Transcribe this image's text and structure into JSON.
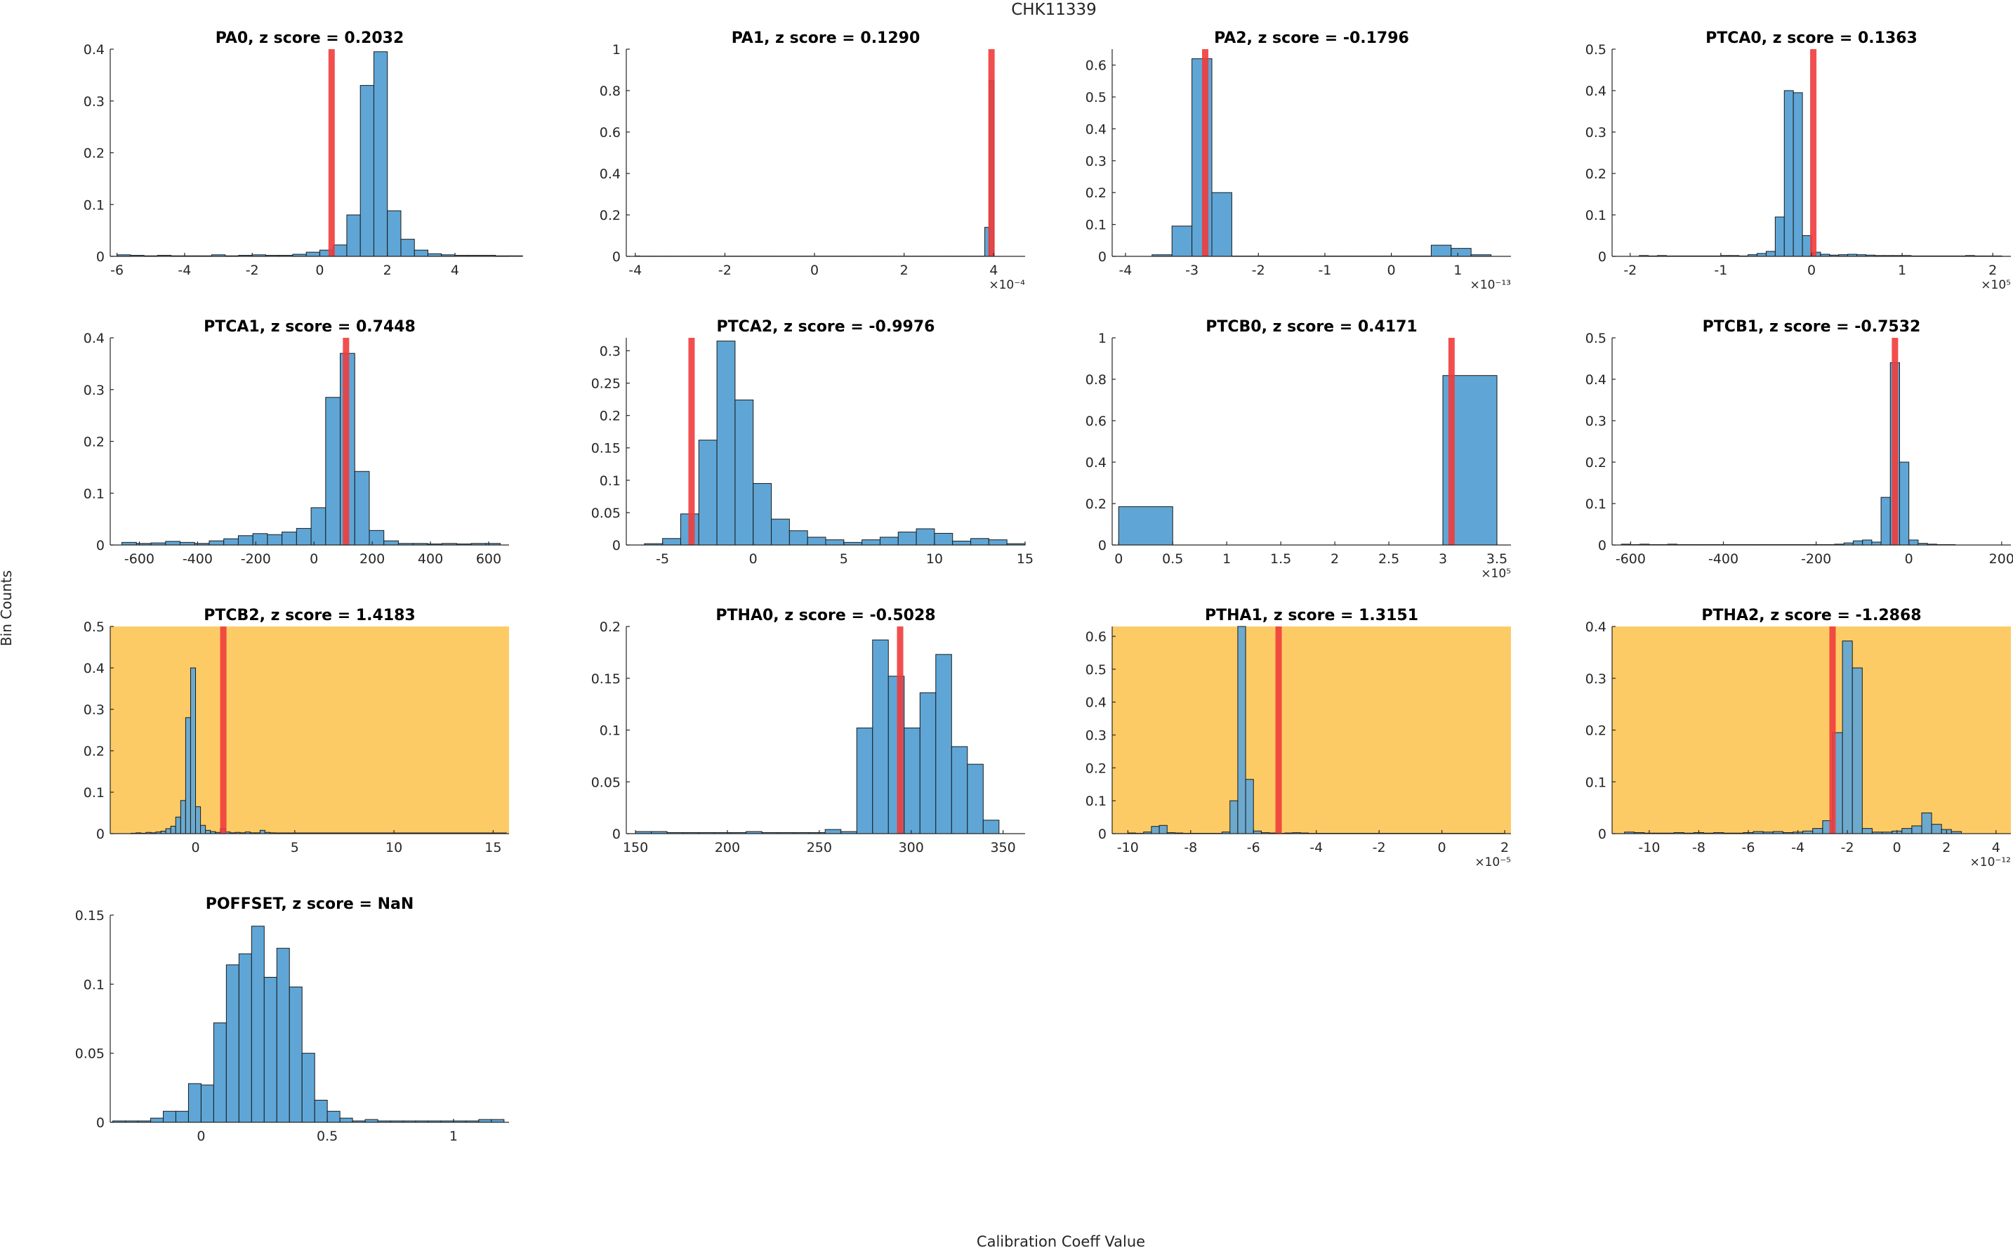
{
  "figure": {
    "title": "CHK11339",
    "xlabel": "Calibration Coeff Value",
    "ylabel": "Bin Counts"
  },
  "colors": {
    "bar_fill": "#5FA6D6",
    "bar_stroke": "#1a1a1a",
    "marker": "#f03c3c",
    "highlight_bg": "#FDCB65",
    "axis": "#262626"
  },
  "chart_data": [
    {
      "type": "bar",
      "title": "PA0, z score = 0.2032",
      "highlight": false,
      "xlim": [
        -6.2,
        5.6
      ],
      "ylim": [
        0,
        0.4
      ],
      "xticks": [
        -6,
        -4,
        -2,
        0,
        2,
        4
      ],
      "xtick_labels": [
        "-6",
        "-4",
        "-2",
        "0",
        "2",
        "4"
      ],
      "yticks": [
        0,
        0.1,
        0.2,
        0.3,
        0.4
      ],
      "ytick_labels": [
        "0",
        "0.1",
        "0.2",
        "0.3",
        "0.4"
      ],
      "exponent": "",
      "bin_start": -6.0,
      "bin_width": 0.4,
      "values": [
        0.003,
        0.002,
        0.001,
        0.002,
        0.001,
        0.001,
        0.001,
        0.003,
        0.001,
        0.002,
        0.003,
        0.002,
        0.002,
        0.004,
        0.008,
        0.012,
        0.022,
        0.08,
        0.33,
        0.395,
        0.088,
        0.033,
        0.012,
        0.005,
        0.003,
        0.002,
        0.002,
        0.002,
        0.001,
        0.001
      ],
      "marker_x": 0.35
    },
    {
      "type": "bar",
      "title": "PA1, z score = 0.1290",
      "highlight": false,
      "xlim": [
        -4.2,
        4.7
      ],
      "ylim": [
        0,
        1
      ],
      "xticks": [
        -4,
        -2,
        0,
        2,
        4
      ],
      "xtick_labels": [
        "-4",
        "-2",
        "0",
        "2",
        "4"
      ],
      "yticks": [
        0,
        0.2,
        0.4,
        0.6,
        0.8,
        1
      ],
      "ytick_labels": [
        "0",
        "0.2",
        "0.4",
        "0.6",
        "0.8",
        "1"
      ],
      "exponent": "×10⁻⁴",
      "bin_start": -4.0,
      "bin_width": 0.1,
      "values": [
        0.002,
        0.001,
        0.001,
        0.001,
        0.001,
        0.001,
        0.001,
        0.001,
        0.001,
        0.001,
        0.001,
        0.001,
        0.001,
        0.001,
        0.001,
        0.001,
        0.001,
        0.001,
        0.001,
        0.001,
        0.001,
        0.001,
        0.001,
        0.001,
        0.001,
        0.001,
        0.001,
        0.001,
        0.001,
        0.001,
        0.001,
        0.001,
        0.001,
        0.001,
        0.001,
        0.001,
        0.001,
        0.001,
        0.001,
        0.001,
        0.001,
        0.001,
        0.001,
        0.001,
        0.001,
        0.001,
        0.001,
        0.001,
        0.001,
        0.001,
        0.001,
        0.001,
        0.001,
        0.001,
        0.001,
        0.001,
        0.001,
        0.001,
        0.001,
        0.001,
        0.001,
        0.001,
        0.001,
        0.001,
        0.001,
        0.001,
        0.001,
        0.001,
        0.001,
        0.001,
        0.001,
        0.001,
        0.001,
        0.001,
        0.001,
        0.001,
        0.001,
        0.001,
        0.14,
        0.85
      ],
      "marker_x": 3.95
    },
    {
      "type": "bar",
      "title": "PA2, z score = -0.1796",
      "highlight": false,
      "xlim": [
        -4.2,
        1.8
      ],
      "ylim": [
        0,
        0.65
      ],
      "xticks": [
        -4,
        -3,
        -2,
        -1,
        0,
        1
      ],
      "xtick_labels": [
        "-4",
        "-3",
        "-2",
        "-1",
        "0",
        "1"
      ],
      "yticks": [
        0,
        0.1,
        0.2,
        0.3,
        0.4,
        0.5,
        0.6
      ],
      "ytick_labels": [
        "0",
        "0.1",
        "0.2",
        "0.3",
        "0.4",
        "0.5",
        "0.6"
      ],
      "exponent": "×10⁻¹³",
      "bin_start": -3.6,
      "bin_width": 0.3,
      "values": [
        0.005,
        0.095,
        0.62,
        0.2,
        0.001,
        0.001,
        0.001,
        0.001,
        0.001,
        0.001,
        0.001,
        0.001,
        0.001,
        0.001,
        0.035,
        0.025,
        0.005
      ],
      "marker_x": -2.8
    },
    {
      "type": "bar",
      "title": "PTCA0, z score = 0.1363",
      "highlight": false,
      "xlim": [
        -2.2,
        2.2
      ],
      "ylim": [
        0,
        0.5
      ],
      "xticks": [
        -2,
        -1,
        0,
        1,
        2
      ],
      "xtick_labels": [
        "-2",
        "-1",
        "0",
        "1",
        "2"
      ],
      "yticks": [
        0,
        0.1,
        0.2,
        0.3,
        0.4,
        0.5
      ],
      "ytick_labels": [
        "0",
        "0.1",
        "0.2",
        "0.3",
        "0.4",
        "0.5"
      ],
      "exponent": "×10⁵",
      "bin_start": -1.9,
      "bin_width": 0.1,
      "values": [
        0.002,
        0.001,
        0.002,
        0.001,
        0.001,
        0.001,
        0.001,
        0.001,
        0.001,
        0.002,
        0.002,
        0.001,
        0.004,
        0.007,
        0.012,
        0.095,
        0.4,
        0.395,
        0.05,
        0.01,
        0.005,
        0.003,
        0.004,
        0.005,
        0.004,
        0.003,
        0.002,
        0.002,
        0.002,
        0.002,
        0.001,
        0.001,
        0.001,
        0.001,
        0.001,
        0.001,
        0.002,
        0.001,
        0.001,
        0.001
      ],
      "marker_x": 0.02
    },
    {
      "type": "bar",
      "title": "PTCA1, z score = 0.7448",
      "highlight": false,
      "xlim": [
        -700,
        670
      ],
      "ylim": [
        0,
        0.4
      ],
      "xticks": [
        -600,
        -400,
        -200,
        0,
        200,
        400,
        600
      ],
      "xtick_labels": [
        "-600",
        "-400",
        "-200",
        "0",
        "200",
        "400",
        "600"
      ],
      "yticks": [
        0,
        0.1,
        0.2,
        0.3,
        0.4
      ],
      "ytick_labels": [
        "0",
        "0.1",
        "0.2",
        "0.3",
        "0.4"
      ],
      "exponent": "",
      "bin_start": -660,
      "bin_width": 50,
      "values": [
        0.005,
        0.003,
        0.004,
        0.007,
        0.005,
        0.003,
        0.008,
        0.012,
        0.018,
        0.022,
        0.02,
        0.025,
        0.032,
        0.072,
        0.285,
        0.37,
        0.142,
        0.028,
        0.008,
        0.003,
        0.003,
        0.002,
        0.003,
        0.002,
        0.003,
        0.003
      ],
      "marker_x": 110
    },
    {
      "type": "bar",
      "title": "PTCA2, z score = -0.9976",
      "highlight": false,
      "xlim": [
        -7,
        15
      ],
      "ylim": [
        0,
        0.32
      ],
      "xticks": [
        -5,
        0,
        5,
        10,
        15
      ],
      "xtick_labels": [
        "-5",
        "0",
        "5",
        "10",
        "15"
      ],
      "yticks": [
        0,
        0.05,
        0.1,
        0.15,
        0.2,
        0.25,
        0.3
      ],
      "ytick_labels": [
        "0",
        "0.05",
        "0.1",
        "0.15",
        "0.2",
        "0.25",
        "0.3"
      ],
      "exponent": "",
      "bin_start": -6.0,
      "bin_width": 1.0,
      "values": [
        0.002,
        0.01,
        0.048,
        0.162,
        0.315,
        0.224,
        0.095,
        0.04,
        0.022,
        0.012,
        0.008,
        0.004,
        0.008,
        0.012,
        0.02,
        0.025,
        0.018,
        0.006,
        0.01,
        0.008,
        0.002
      ],
      "marker_x": -3.4
    },
    {
      "type": "bar",
      "title": "PTCB0, z score = 0.4171",
      "highlight": false,
      "xlim": [
        -0.06,
        3.63
      ],
      "ylim": [
        0,
        1
      ],
      "xticks": [
        0,
        0.5,
        1,
        1.5,
        2,
        2.5,
        3,
        3.5
      ],
      "xtick_labels": [
        "0",
        "0.5",
        "1",
        "1.5",
        "2",
        "2.5",
        "3",
        "3.5"
      ],
      "yticks": [
        0,
        0.2,
        0.4,
        0.6,
        0.8,
        1
      ],
      "ytick_labels": [
        "0",
        "0.2",
        "0.4",
        "0.6",
        "0.8",
        "1"
      ],
      "exponent": "×10⁵",
      "bin_start": 0.0,
      "bin_width": 0.5,
      "values": [
        0.185,
        0,
        0,
        0,
        0,
        0,
        0.818
      ],
      "marker_x": 3.08
    },
    {
      "type": "bar",
      "title": "PTCB1, z score = -0.7532",
      "highlight": false,
      "xlim": [
        -640,
        220
      ],
      "ylim": [
        0,
        0.5
      ],
      "xticks": [
        -600,
        -400,
        -200,
        0,
        200
      ],
      "xtick_labels": [
        "-600",
        "-400",
        "-200",
        "0",
        "200"
      ],
      "yticks": [
        0,
        0.1,
        0.2,
        0.3,
        0.4,
        0.5
      ],
      "ytick_labels": [
        "0",
        "0.1",
        "0.2",
        "0.3",
        "0.4",
        "0.5"
      ],
      "exponent": "",
      "bin_start": -620,
      "bin_width": 20,
      "values": [
        0.002,
        0.001,
        0.002,
        0.001,
        0.001,
        0.002,
        0.001,
        0.001,
        0.001,
        0.001,
        0.001,
        0.001,
        0.001,
        0.001,
        0.001,
        0.001,
        0.001,
        0.001,
        0.001,
        0.001,
        0.001,
        0.001,
        0.001,
        0.002,
        0.005,
        0.01,
        0.012,
        0.007,
        0.115,
        0.44,
        0.2,
        0.012,
        0.004,
        0.002,
        0.001,
        0.001
      ],
      "marker_x": -30
    },
    {
      "type": "bar",
      "title": "PTCB2, z score = 1.4183",
      "highlight": true,
      "xlim": [
        -4.3,
        15.8
      ],
      "ylim": [
        0,
        0.5
      ],
      "xticks": [
        0,
        5,
        10,
        15
      ],
      "xtick_labels": [
        "0",
        "5",
        "10",
        "15"
      ],
      "yticks": [
        0,
        0.1,
        0.2,
        0.3,
        0.4,
        0.5
      ],
      "ytick_labels": [
        "0",
        "0.1",
        "0.2",
        "0.3",
        "0.4",
        "0.5"
      ],
      "exponent": "",
      "bin_start": -3.25,
      "bin_width": 0.25,
      "values": [
        0.001,
        0.002,
        0.001,
        0.003,
        0.002,
        0.004,
        0.006,
        0.012,
        0.018,
        0.04,
        0.08,
        0.28,
        0.4,
        0.065,
        0.02,
        0.008,
        0.005,
        0.003,
        0.012,
        0.004,
        0.002,
        0.003,
        0.002,
        0.004,
        0.002,
        0.002,
        0.008,
        0.003,
        0.002
      ],
      "tail": 0.001,
      "marker_x": 1.4
    },
    {
      "type": "bar",
      "title": "PTHA0, z score = -0.5028",
      "highlight": false,
      "xlim": [
        145,
        362
      ],
      "ylim": [
        0,
        0.2
      ],
      "xticks": [
        150,
        200,
        250,
        300,
        350
      ],
      "xtick_labels": [
        "150",
        "200",
        "250",
        "300",
        "350"
      ],
      "yticks": [
        0,
        0.05,
        0.1,
        0.15,
        0.2
      ],
      "ytick_labels": [
        "0",
        "0.05",
        "0.1",
        "0.15",
        "0.2"
      ],
      "exponent": "",
      "bin_start": 150,
      "bin_width": 8.6,
      "values": [
        0.002,
        0.002,
        0.001,
        0.001,
        0.001,
        0.001,
        0.001,
        0.002,
        0.001,
        0.001,
        0.001,
        0.001,
        0.004,
        0.002,
        0.102,
        0.187,
        0.152,
        0.102,
        0.136,
        0.173,
        0.084,
        0.067,
        0.013
      ],
      "marker_x": 294
    },
    {
      "type": "bar",
      "title": "PTHA1, z score = 1.3151",
      "highlight": true,
      "xlim": [
        -10.5,
        2.2
      ],
      "ylim": [
        0,
        0.63
      ],
      "xticks": [
        -10,
        -8,
        -6,
        -4,
        -2,
        0,
        2
      ],
      "xtick_labels": [
        "-10",
        "-8",
        "-6",
        "-4",
        "-2",
        "0",
        "2"
      ],
      "yticks": [
        0,
        0.1,
        0.2,
        0.3,
        0.4,
        0.5,
        0.6
      ],
      "ytick_labels": [
        "0",
        "0.1",
        "0.2",
        "0.3",
        "0.4",
        "0.5",
        "0.6"
      ],
      "exponent": "×10⁻⁵",
      "bin_start": -10.0,
      "bin_width": 0.25,
      "values": [
        0.002,
        0.001,
        0.005,
        0.022,
        0.025,
        0.003,
        0.002,
        0.001,
        0.001,
        0.001,
        0.001,
        0.001,
        0.005,
        0.1,
        0.63,
        0.165,
        0.008,
        0.003,
        0.002,
        0.001,
        0.002,
        0.003,
        0.002,
        0.001,
        0.001,
        0.001,
        0.001,
        0.001,
        0.001,
        0.001,
        0.001,
        0.001,
        0.001,
        0.001,
        0.001,
        0.001,
        0.001,
        0.001,
        0.001,
        0.001,
        0.001,
        0.001,
        0.001,
        0.001,
        0.001,
        0.001,
        0.001,
        0.001
      ],
      "marker_x": -5.2
    },
    {
      "type": "bar",
      "title": "PTHA2, z score = -1.2868",
      "highlight": true,
      "xlim": [
        -11.5,
        4.6
      ],
      "ylim": [
        0,
        0.4
      ],
      "xticks": [
        -10,
        -8,
        -6,
        -4,
        -2,
        0,
        2,
        4
      ],
      "xtick_labels": [
        "-10",
        "-8",
        "-6",
        "-4",
        "-2",
        "0",
        "2",
        "4"
      ],
      "yticks": [
        0,
        0.1,
        0.2,
        0.3,
        0.4
      ],
      "ytick_labels": [
        "0",
        "0.1",
        "0.2",
        "0.3",
        "0.4"
      ],
      "exponent": "×10⁻¹²",
      "bin_start": -11.0,
      "bin_width": 0.4,
      "values": [
        0.003,
        0.002,
        0.001,
        0.001,
        0.001,
        0.002,
        0.001,
        0.002,
        0.001,
        0.002,
        0.001,
        0.001,
        0.002,
        0.004,
        0.003,
        0.004,
        0.002,
        0.003,
        0.005,
        0.01,
        0.025,
        0.195,
        0.372,
        0.32,
        0.01,
        0.003,
        0.003,
        0.005,
        0.01,
        0.015,
        0.04,
        0.018,
        0.008,
        0.004
      ],
      "marker_x": -2.6
    },
    {
      "type": "bar",
      "title": "POFFSET, z score = NaN",
      "highlight": false,
      "xlim": [
        -0.36,
        1.22
      ],
      "ylim": [
        0,
        0.15
      ],
      "xticks": [
        0,
        0.5,
        1
      ],
      "xtick_labels": [
        "0",
        "0.5",
        "1"
      ],
      "yticks": [
        0,
        0.05,
        0.1,
        0.15
      ],
      "ytick_labels": [
        "0",
        "0.05",
        "0.1",
        "0.15"
      ],
      "exponent": "",
      "bin_start": -0.35,
      "bin_width": 0.05,
      "values": [
        0.001,
        0.001,
        0.001,
        0.003,
        0.008,
        0.008,
        0.028,
        0.027,
        0.072,
        0.114,
        0.122,
        0.142,
        0.105,
        0.126,
        0.098,
        0.05,
        0.016,
        0.008,
        0.003,
        0.001,
        0.002,
        0.001,
        0.001,
        0.001,
        0.001,
        0.001,
        0.001,
        0.001,
        0.001,
        0.002,
        0.002
      ],
      "marker_x": null
    }
  ]
}
